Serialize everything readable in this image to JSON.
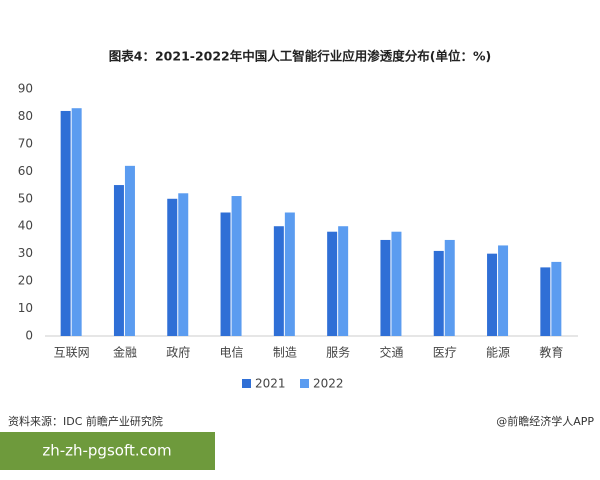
{
  "chart_data": {
    "type": "bar",
    "title": "图表4：2021-2022年中国人工智能行业应用渗透度分布(单位：%)",
    "categories": [
      "互联网",
      "金融",
      "政府",
      "电信",
      "制造",
      "服务",
      "交通",
      "医疗",
      "能源",
      "教育"
    ],
    "series": [
      {
        "name": "2021",
        "color": "#2f6fd6",
        "values": [
          82,
          55,
          50,
          45,
          40,
          38,
          35,
          31,
          30,
          25
        ]
      },
      {
        "name": "2022",
        "color": "#5b9cf0",
        "values": [
          83,
          62,
          52,
          51,
          45,
          40,
          38,
          35,
          33,
          27
        ]
      }
    ],
    "ylim": [
      0,
      90
    ],
    "yticks": [
      0,
      10,
      20,
      30,
      40,
      50,
      60,
      70,
      80,
      90
    ],
    "grid": false,
    "legend": "bottom"
  },
  "footer": {
    "source": "资料来源：IDC 前瞻产业研究院",
    "credit": "@前瞻经济学人APP"
  },
  "overlay": {
    "text": "zh-zh-pgsoft.com"
  }
}
